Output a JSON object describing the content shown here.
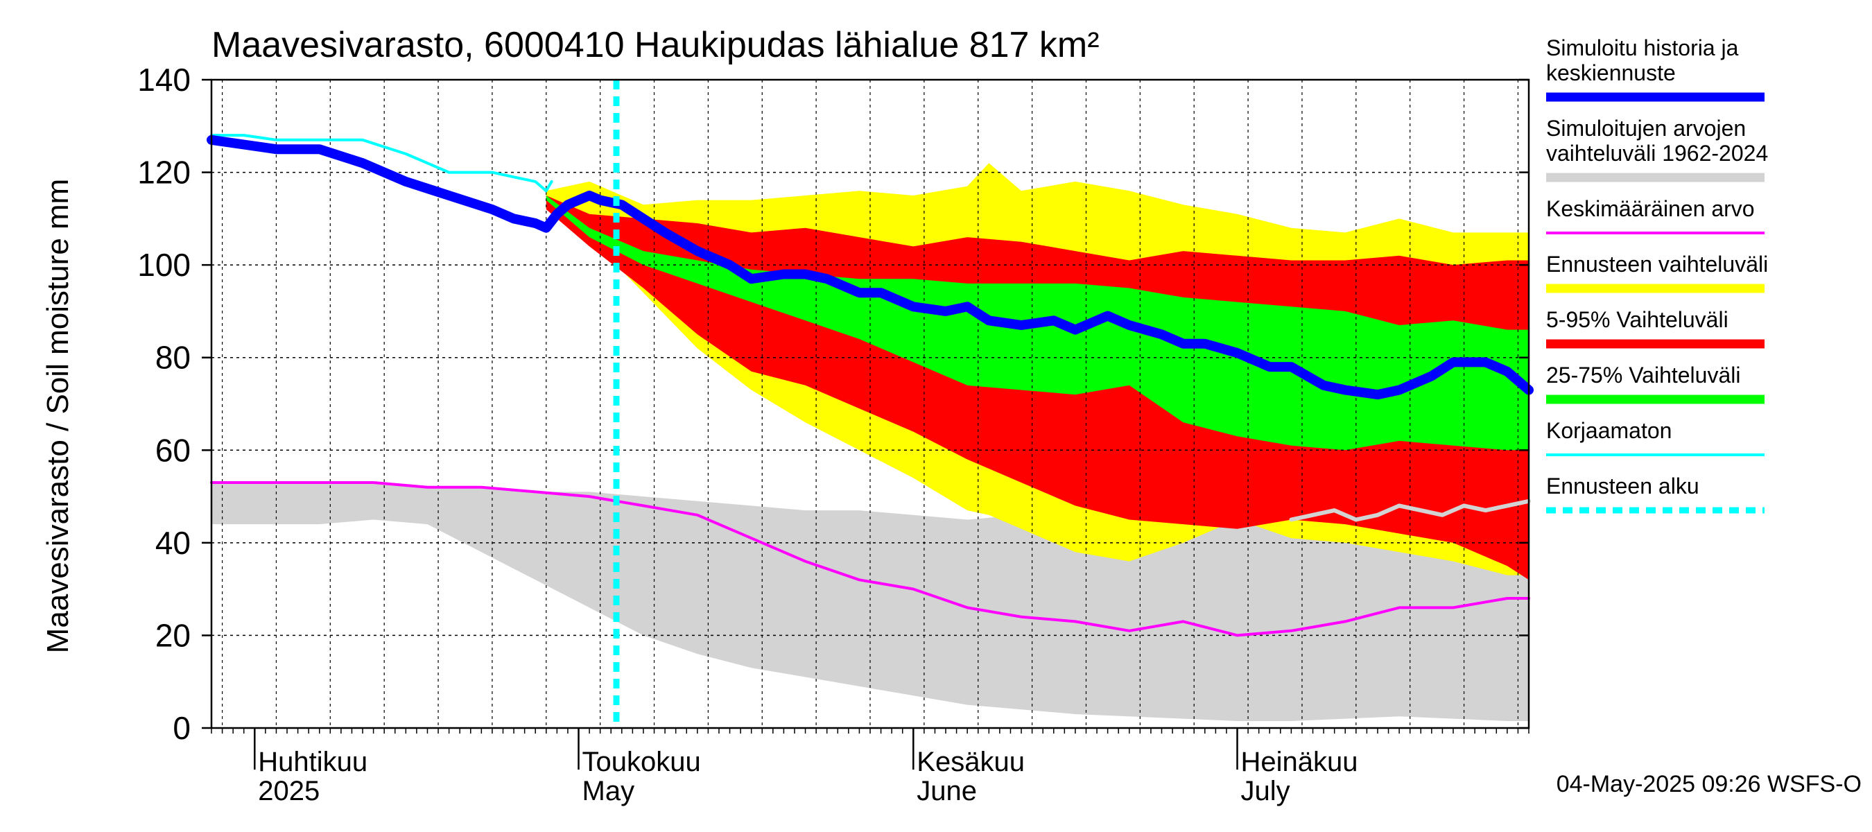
{
  "chart_data": {
    "type": "area",
    "title": "Maavesivarasto, 6000410 Haukipudas lähialue 817 km²",
    "ylabel": "Maavesivarasto / Soil moisture   mm",
    "xlabel": "",
    "ylim": [
      0,
      140
    ],
    "yticks": [
      0,
      20,
      40,
      60,
      80,
      100,
      120,
      140
    ],
    "xlim_days": [
      0,
      122
    ],
    "x_unit": "days since 2025-03-28",
    "forecast_start_day": 37.5,
    "month_labels": [
      {
        "day": 4,
        "fi": "Huhtikuu",
        "en": "2025"
      },
      {
        "day": 34,
        "fi": "Toukokuu",
        "en": "May"
      },
      {
        "day": 65,
        "fi": "Kesäkuu",
        "en": "June"
      },
      {
        "day": 95,
        "fi": "Heinäkuu",
        "en": "July"
      }
    ],
    "series": [
      {
        "name": "Simuloitujen arvojen vaihteluväli 1962-2024",
        "kind": "band",
        "color": "#d3d3d3",
        "x": [
          0,
          5,
          10,
          15,
          20,
          25,
          30,
          35,
          40,
          45,
          50,
          55,
          60,
          65,
          70,
          75,
          80,
          85,
          90,
          95,
          100,
          105,
          110,
          115,
          120,
          122
        ],
        "upper": [
          53,
          53,
          53,
          53,
          52,
          52,
          51,
          51,
          50,
          49,
          48,
          47,
          47,
          46,
          45,
          46,
          47,
          46,
          45,
          44,
          44,
          43,
          41,
          40,
          39,
          38
        ],
        "lower": [
          44,
          44,
          44,
          45,
          44,
          38,
          32,
          26,
          20,
          16,
          13,
          11,
          9,
          7,
          5,
          4,
          3,
          2.5,
          2,
          1.5,
          1.5,
          2,
          2.5,
          2,
          1.5,
          1.5
        ]
      },
      {
        "name": "Ennusteen vaihteluväli",
        "kind": "band",
        "color": "#ffff00",
        "x": [
          31,
          35,
          40,
          45,
          50,
          55,
          60,
          65,
          70,
          72,
          75,
          80,
          85,
          90,
          95,
          100,
          105,
          110,
          115,
          120,
          122
        ],
        "upper": [
          116,
          118,
          113,
          114,
          114,
          115,
          116,
          115,
          117,
          122,
          116,
          118,
          116,
          113,
          111,
          108,
          107,
          110,
          107,
          107,
          107
        ],
        "lower": [
          112,
          106,
          94,
          82,
          73,
          66,
          60,
          54,
          47,
          46,
          43,
          38,
          36,
          40,
          45,
          41,
          40,
          38,
          36,
          33,
          33
        ]
      },
      {
        "name": "5-95% Vaihteluväli",
        "kind": "band",
        "color": "#ff0000",
        "x": [
          31,
          35,
          40,
          45,
          50,
          55,
          60,
          65,
          70,
          75,
          80,
          85,
          90,
          95,
          100,
          105,
          110,
          115,
          120,
          122
        ],
        "upper": [
          115,
          111,
          110,
          109,
          107,
          108,
          106,
          104,
          106,
          105,
          103,
          101,
          103,
          102,
          101,
          101,
          102,
          100,
          101,
          101
        ],
        "lower": [
          112,
          104,
          95,
          85,
          77,
          74,
          69,
          64,
          58,
          53,
          48,
          45,
          44,
          43,
          45,
          44,
          42,
          40,
          35,
          32
        ]
      },
      {
        "name": "25-75% Vaihteluväli",
        "kind": "band",
        "color": "#00ff00",
        "x": [
          31,
          35,
          40,
          45,
          50,
          55,
          60,
          65,
          70,
          75,
          80,
          85,
          90,
          95,
          100,
          105,
          110,
          115,
          120,
          122
        ],
        "upper": [
          115,
          108,
          103,
          101,
          99,
          98,
          97,
          97,
          96,
          96,
          96,
          95,
          93,
          92,
          91,
          90,
          87,
          88,
          86,
          86
        ],
        "lower": [
          114,
          106,
          100,
          96,
          92,
          88,
          84,
          79,
          74,
          73,
          72,
          74,
          66,
          63,
          61,
          60,
          62,
          61,
          60,
          60
        ]
      },
      {
        "name": "Keskimääräinen arvo",
        "kind": "line",
        "color": "#ff00ff",
        "x": [
          0,
          5,
          10,
          15,
          20,
          25,
          30,
          35,
          40,
          45,
          50,
          55,
          60,
          65,
          70,
          75,
          80,
          85,
          90,
          95,
          100,
          105,
          110,
          115,
          120,
          122
        ],
        "values": [
          53,
          53,
          53,
          53,
          52,
          52,
          51,
          50,
          48,
          46,
          41,
          36,
          32,
          30,
          26,
          24,
          23,
          21,
          23,
          20,
          21,
          23,
          26,
          26,
          28,
          28
        ]
      },
      {
        "name": "Korjaamaton",
        "kind": "line",
        "color": "#00ffff",
        "x": [
          0,
          3,
          6,
          10,
          14,
          18,
          22,
          26,
          28,
          30,
          31,
          31.5
        ],
        "values": [
          128,
          128,
          127,
          127,
          127,
          124,
          120,
          120,
          119,
          118,
          116,
          118
        ]
      },
      {
        "name": "Simuloitu historia ja keskiennuste",
        "kind": "line",
        "color": "#0000ff",
        "x": [
          0,
          3,
          6,
          10,
          14,
          18,
          22,
          26,
          28,
          30,
          31,
          32,
          33,
          34,
          35,
          36,
          38,
          40,
          42,
          45,
          48,
          50,
          53,
          55,
          57,
          60,
          62,
          65,
          68,
          70,
          72,
          75,
          78,
          80,
          83,
          85,
          88,
          90,
          92,
          95,
          98,
          100,
          103,
          105,
          108,
          110,
          113,
          115,
          118,
          120,
          122
        ],
        "values": [
          127,
          126,
          125,
          125,
          122,
          118,
          115,
          112,
          110,
          109,
          108,
          111,
          113,
          114,
          115,
          114,
          113,
          110,
          107,
          103,
          100,
          97,
          98,
          98,
          97,
          94,
          94,
          91,
          90,
          91,
          88,
          87,
          88,
          86,
          89,
          87,
          85,
          83,
          83,
          81,
          78,
          78,
          74,
          73,
          72,
          73,
          76,
          79,
          79,
          77,
          73
        ]
      },
      {
        "name": "Simuloitu historia (forecast tail)",
        "kind": "line",
        "color": "#d3d3d3",
        "legend": false,
        "x": [
          100,
          102,
          104,
          106,
          108,
          110,
          112,
          114,
          116,
          118,
          120,
          122
        ],
        "values": [
          45,
          46,
          47,
          45,
          46,
          48,
          47,
          46,
          48,
          47,
          48,
          49
        ]
      }
    ],
    "legend": [
      {
        "label": "Simuloitu historia ja keskiennuste",
        "lines": [
          "Simuloitu historia ja",
          "keskiennuste"
        ],
        "color": "#0000ff",
        "style": "thick"
      },
      {
        "label": "Simuloitujen arvojen vaihteluväli 1962-2024",
        "lines": [
          "Simuloitujen arvojen",
          "vaihteluväli 1962-2024"
        ],
        "color": "#d3d3d3",
        "style": "band"
      },
      {
        "label": "Keskimääräinen arvo",
        "lines": [
          "Keskimääräinen arvo"
        ],
        "color": "#ff00ff",
        "style": "thin"
      },
      {
        "label": "Ennusteen vaihteluväli",
        "lines": [
          "Ennusteen vaihteluväli"
        ],
        "color": "#ffff00",
        "style": "band"
      },
      {
        "label": "5-95% Vaihteluväli",
        "lines": [
          "5-95% Vaihteluväli"
        ],
        "color": "#ff0000",
        "style": "band"
      },
      {
        "label": "25-75% Vaihteluväli",
        "lines": [
          "25-75% Vaihteluväli"
        ],
        "color": "#00ff00",
        "style": "band"
      },
      {
        "label": "Korjaamaton",
        "lines": [
          "Korjaamaton"
        ],
        "color": "#00ffff",
        "style": "thin"
      },
      {
        "label": "Ennusteen alku",
        "lines": [
          "Ennusteen alku"
        ],
        "color": "#00ffff",
        "style": "dashed"
      }
    ],
    "footer": "04-May-2025 09:26 WSFS-O"
  }
}
